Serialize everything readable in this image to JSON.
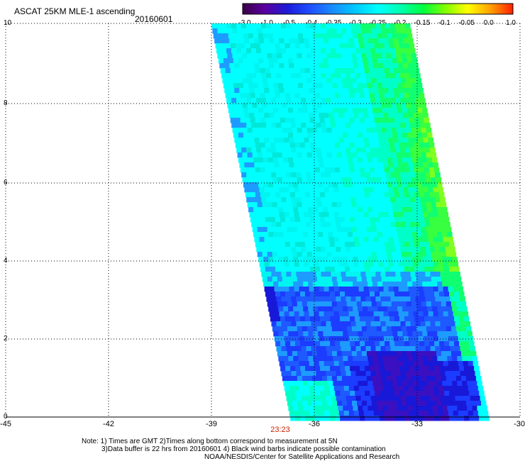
{
  "header": {
    "title": "ASCAT 25KM MLE-1 ascending",
    "date": "20160601"
  },
  "colorbar": {
    "tick_labels": [
      "-3.0",
      "-1.0",
      "-0.5",
      "-0.4",
      "-0.35",
      "-0.3",
      "-0.25",
      "-0.2",
      "-0.15",
      "-0.1",
      "-0.05",
      "0.0",
      "1.0"
    ],
    "colors": [
      "#3a0046",
      "#5a00a0",
      "#1b1bd8",
      "#1e4fff",
      "#1a8cff",
      "#00c8ff",
      "#00ffff",
      "#00ffb0",
      "#00ff40",
      "#80ff00",
      "#ffff00",
      "#ffa000",
      "#ff2000"
    ]
  },
  "axes": {
    "x_ticks": [
      "-45",
      "-42",
      "-39",
      "-36",
      "-33",
      "-30"
    ],
    "y_ticks": [
      "0",
      "2",
      "4",
      "6",
      "8",
      "10"
    ]
  },
  "swath_time": "23:23",
  "notes": {
    "line1": "Note: 1) Times are GMT 2)Times along bottom correspond to measurement at 5N",
    "line2": "3)Data buffer is 22 hrs from 20160601 4) Black wind barbs indicate possible contamination",
    "line3": "NOAA/NESDIS/Center for Satellite Applications and Research"
  }
}
